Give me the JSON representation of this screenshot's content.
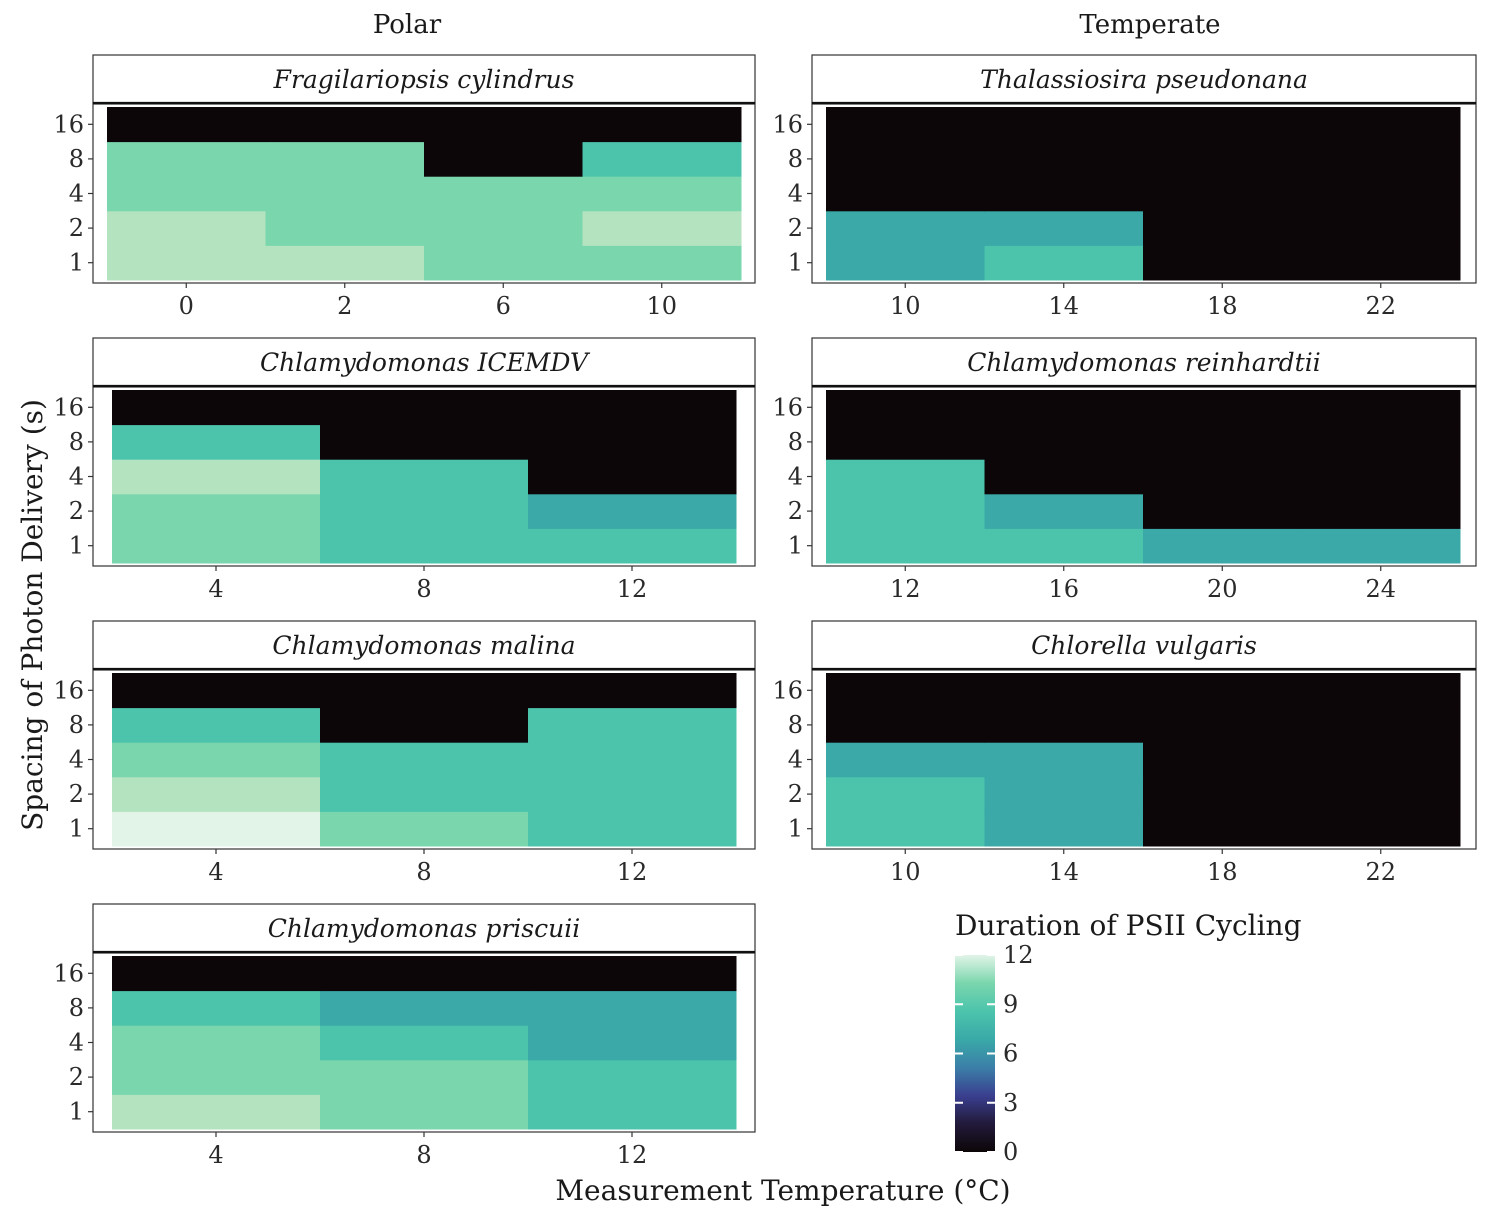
{
  "column_titles": {
    "polar": "Polar",
    "temperate": "Temperate"
  },
  "axis_titles": {
    "x": "Measurement Temperature (°C)",
    "y": "Spacing of Photon Delivery (s)"
  },
  "legend": {
    "title": "Duration of PSII Cycling",
    "ticks": [
      "12",
      "9",
      "6",
      "3",
      "0"
    ],
    "range": [
      0,
      12
    ],
    "gradient_colors": [
      "#0c0608",
      "#221a3a",
      "#3a3f8f",
      "#3b7fa8",
      "#3aa9a8",
      "#4cc4ac",
      "#7ad6ad",
      "#e2f4e8"
    ]
  },
  "chart_data": [
    {
      "type": "heatmap",
      "title": "Fragilariopsis cylindrus",
      "x": [
        "0",
        "2",
        "6",
        "10"
      ],
      "y": [
        "1",
        "2",
        "4",
        "8",
        "16"
      ],
      "xlabel": "Measurement Temperature (°C)",
      "ylabel": "Spacing of Photon Delivery (s)",
      "values": [
        [
          11,
          11,
          10,
          10
        ],
        [
          11,
          10,
          10,
          11
        ],
        [
          10,
          10,
          10,
          10
        ],
        [
          10,
          10,
          0,
          9
        ],
        [
          0,
          0,
          0,
          0
        ]
      ]
    },
    {
      "type": "heatmap",
      "title": "Thalassiosira pseudonana",
      "x": [
        "10",
        "14",
        "18",
        "22"
      ],
      "y": [
        "1",
        "2",
        "4",
        "8",
        "16"
      ],
      "values": [
        [
          8,
          9,
          0,
          0
        ],
        [
          8,
          8,
          0,
          0
        ],
        [
          0,
          0,
          0,
          0
        ],
        [
          0,
          0,
          0,
          0
        ],
        [
          0,
          0,
          0,
          0
        ]
      ]
    },
    {
      "type": "heatmap",
      "title": "Chlamydomonas ICEMDV",
      "x": [
        "4",
        "8",
        "12"
      ],
      "y": [
        "1",
        "2",
        "4",
        "8",
        "16"
      ],
      "values": [
        [
          10,
          9,
          9
        ],
        [
          10,
          9,
          8
        ],
        [
          11,
          9,
          0
        ],
        [
          9,
          0,
          0
        ],
        [
          0,
          0,
          0
        ]
      ]
    },
    {
      "type": "heatmap",
      "title": "Chlamydomonas reinhardtii",
      "x": [
        "12",
        "16",
        "20",
        "24"
      ],
      "y": [
        "1",
        "2",
        "4",
        "8",
        "16"
      ],
      "values": [
        [
          9,
          9,
          8,
          8
        ],
        [
          9,
          8,
          0,
          0
        ],
        [
          9,
          0,
          0,
          0
        ],
        [
          0,
          0,
          0,
          0
        ],
        [
          0,
          0,
          0,
          0
        ]
      ]
    },
    {
      "type": "heatmap",
      "title": "Chlamydomonas malina",
      "x": [
        "4",
        "8",
        "12"
      ],
      "y": [
        "1",
        "2",
        "4",
        "8",
        "16"
      ],
      "values": [
        [
          12,
          10,
          9
        ],
        [
          11,
          9,
          9
        ],
        [
          10,
          9,
          9
        ],
        [
          9,
          0,
          9
        ],
        [
          0,
          0,
          0
        ]
      ]
    },
    {
      "type": "heatmap",
      "title": "Chlorella vulgaris",
      "x": [
        "10",
        "14",
        "18",
        "22"
      ],
      "y": [
        "1",
        "2",
        "4",
        "8",
        "16"
      ],
      "values": [
        [
          9,
          8,
          0,
          0
        ],
        [
          9,
          8,
          0,
          0
        ],
        [
          8,
          8,
          0,
          0
        ],
        [
          0,
          0,
          0,
          0
        ],
        [
          0,
          0,
          0,
          0
        ]
      ]
    },
    {
      "type": "heatmap",
      "title": "Chlamydomonas priscuii",
      "x": [
        "4",
        "8",
        "12"
      ],
      "y": [
        "1",
        "2",
        "4",
        "8",
        "16"
      ],
      "values": [
        [
          11,
          10,
          9
        ],
        [
          10,
          10,
          9
        ],
        [
          10,
          9,
          8
        ],
        [
          9,
          8,
          8
        ],
        [
          0,
          0,
          0
        ]
      ]
    }
  ]
}
